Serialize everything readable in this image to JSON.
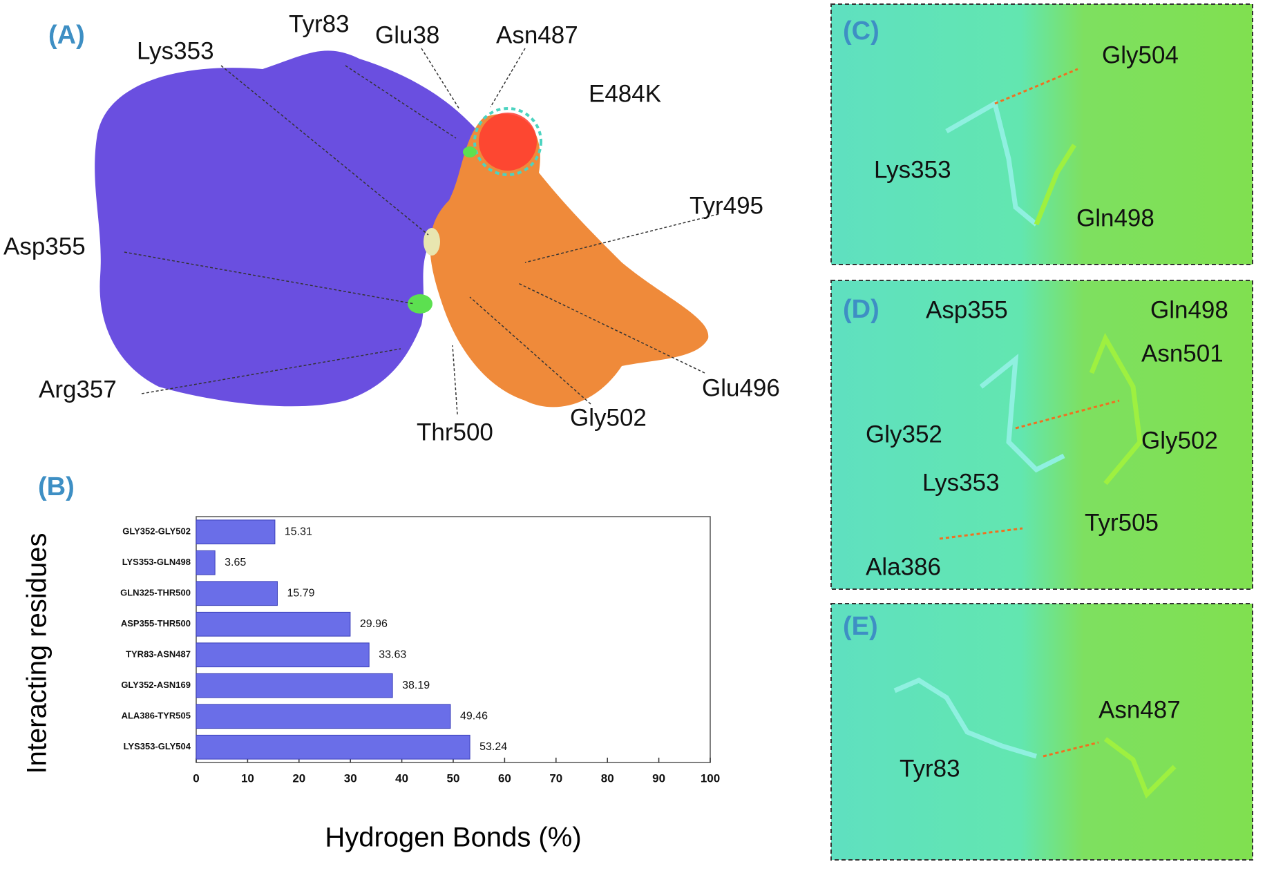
{
  "chart_data": {
    "type": "bar",
    "orientation": "horizontal",
    "label": "(B)",
    "categories": [
      "GLY352-GLY502",
      "LYS353-GLN498",
      "GLN325-THR500",
      "ASP355-THR500",
      "TYR83-ASN487",
      "GLY352-ASN169",
      "ALA386-TYR505",
      "LYS353-GLY504"
    ],
    "values": [
      15.31,
      3.65,
      15.79,
      29.96,
      33.63,
      38.19,
      49.46,
      53.24
    ],
    "color": "#6a6ee8",
    "xlim": [
      0,
      100
    ],
    "xticks": [
      0,
      10,
      20,
      30,
      40,
      50,
      60,
      70,
      80,
      90,
      100
    ],
    "xlabel": "Hydrogen Bonds (%)",
    "ylabel": "Interacting residues"
  },
  "panels": {
    "A": {
      "label": "(A)",
      "residues": [
        "Lys353",
        "Tyr83",
        "Glu38",
        "Asn487",
        "E484K",
        "Tyr495",
        "Asp355",
        "Glu496",
        "Arg357",
        "Thr500",
        "Gly502"
      ]
    },
    "C": {
      "label": "(C)",
      "residues": [
        "Gly504",
        "Lys353",
        "Gln498"
      ]
    },
    "D": {
      "label": "(D)",
      "residues": [
        "Asp355",
        "Gln498",
        "Asn501",
        "Gly352",
        "Gly502",
        "Lys353",
        "Tyr505",
        "Ala386"
      ]
    },
    "E": {
      "label": "(E)",
      "residues": [
        "Asn487",
        "Tyr83"
      ]
    }
  }
}
